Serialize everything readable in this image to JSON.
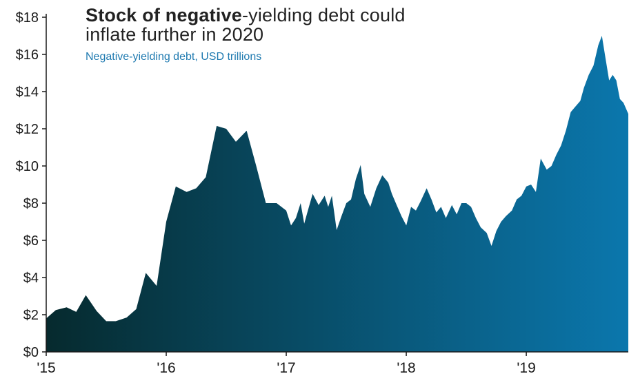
{
  "title_bold": "Stock of negative",
  "title_rest_line1": "-yielding debt could",
  "title_line2": "inflate further in 2020",
  "subtitle": "Negative-yielding debt, USD trillions",
  "colors": {
    "area_start": "#062a2e",
    "area_end": "#0b77ad",
    "axis": "#1a1a1a",
    "subtitle": "#1f7ab0"
  },
  "chart_data": {
    "type": "area",
    "title": "Stock of negative-yielding debt could inflate further in 2020",
    "subtitle": "Negative-yielding debt, USD trillions",
    "xlabel": "",
    "ylabel": "",
    "x_ticks": [
      "'15",
      "'16",
      "'17",
      "'18",
      "'19"
    ],
    "x_tick_values": [
      2015,
      2016,
      2017,
      2018,
      2019
    ],
    "xlim": [
      2015,
      2019.85
    ],
    "y_ticks": [
      "$0",
      "$2",
      "$4",
      "$6",
      "$8",
      "$10",
      "$12",
      "$14",
      "$16",
      "$18"
    ],
    "ylim": [
      0,
      18
    ],
    "grid": false,
    "series": [
      {
        "values": [
          [
            2015.0,
            1.8
          ],
          [
            2015.08,
            2.25
          ],
          [
            2015.17,
            2.4
          ],
          [
            2015.25,
            2.15
          ],
          [
            2015.33,
            3.05
          ],
          [
            2015.42,
            2.2
          ],
          [
            2015.5,
            1.65
          ],
          [
            2015.58,
            1.65
          ],
          [
            2015.67,
            1.85
          ],
          [
            2015.75,
            2.3
          ],
          [
            2015.83,
            4.25
          ],
          [
            2015.92,
            3.55
          ],
          [
            2016.0,
            7.0
          ],
          [
            2016.08,
            8.9
          ],
          [
            2016.17,
            8.6
          ],
          [
            2016.25,
            8.8
          ],
          [
            2016.33,
            9.4
          ],
          [
            2016.42,
            12.15
          ],
          [
            2016.5,
            12.0
          ],
          [
            2016.58,
            11.3
          ],
          [
            2016.67,
            11.9
          ],
          [
            2016.75,
            10.0
          ],
          [
            2016.83,
            8.0
          ],
          [
            2016.92,
            8.0
          ],
          [
            2017.0,
            7.6
          ],
          [
            2017.04,
            6.8
          ],
          [
            2017.08,
            7.2
          ],
          [
            2017.12,
            8.0
          ],
          [
            2017.15,
            6.9
          ],
          [
            2017.18,
            7.6
          ],
          [
            2017.22,
            8.5
          ],
          [
            2017.27,
            7.9
          ],
          [
            2017.32,
            8.4
          ],
          [
            2017.35,
            7.8
          ],
          [
            2017.38,
            8.4
          ],
          [
            2017.42,
            6.55
          ],
          [
            2017.46,
            7.3
          ],
          [
            2017.5,
            8.0
          ],
          [
            2017.54,
            8.2
          ],
          [
            2017.58,
            9.3
          ],
          [
            2017.62,
            10.05
          ],
          [
            2017.65,
            8.5
          ],
          [
            2017.7,
            7.8
          ],
          [
            2017.75,
            8.8
          ],
          [
            2017.8,
            9.5
          ],
          [
            2017.85,
            9.1
          ],
          [
            2017.88,
            8.5
          ],
          [
            2017.92,
            7.9
          ],
          [
            2017.96,
            7.3
          ],
          [
            2018.0,
            6.8
          ],
          [
            2018.04,
            7.8
          ],
          [
            2018.08,
            7.6
          ],
          [
            2018.12,
            8.1
          ],
          [
            2018.17,
            8.8
          ],
          [
            2018.21,
            8.2
          ],
          [
            2018.25,
            7.5
          ],
          [
            2018.29,
            7.8
          ],
          [
            2018.33,
            7.2
          ],
          [
            2018.38,
            7.9
          ],
          [
            2018.42,
            7.4
          ],
          [
            2018.46,
            8.0
          ],
          [
            2018.5,
            8.0
          ],
          [
            2018.54,
            7.8
          ],
          [
            2018.58,
            7.2
          ],
          [
            2018.62,
            6.7
          ],
          [
            2018.67,
            6.4
          ],
          [
            2018.71,
            5.7
          ],
          [
            2018.75,
            6.5
          ],
          [
            2018.79,
            7.0
          ],
          [
            2018.83,
            7.3
          ],
          [
            2018.88,
            7.6
          ],
          [
            2018.92,
            8.2
          ],
          [
            2018.96,
            8.4
          ],
          [
            2019.0,
            8.9
          ],
          [
            2019.04,
            9.0
          ],
          [
            2019.08,
            8.6
          ],
          [
            2019.12,
            10.4
          ],
          [
            2019.17,
            9.8
          ],
          [
            2019.21,
            10.0
          ],
          [
            2019.25,
            10.6
          ],
          [
            2019.29,
            11.1
          ],
          [
            2019.33,
            11.9
          ],
          [
            2019.37,
            12.9
          ],
          [
            2019.41,
            13.2
          ],
          [
            2019.45,
            13.5
          ],
          [
            2019.48,
            14.2
          ],
          [
            2019.52,
            14.9
          ],
          [
            2019.56,
            15.4
          ],
          [
            2019.6,
            16.5
          ],
          [
            2019.63,
            17.0
          ],
          [
            2019.66,
            15.8
          ],
          [
            2019.69,
            14.6
          ],
          [
            2019.72,
            14.9
          ],
          [
            2019.75,
            14.6
          ],
          [
            2019.78,
            13.6
          ],
          [
            2019.81,
            13.4
          ],
          [
            2019.85,
            12.8
          ]
        ]
      }
    ]
  }
}
